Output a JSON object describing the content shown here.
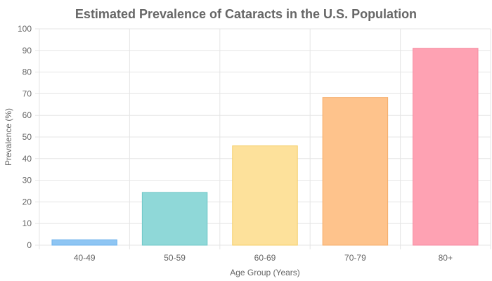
{
  "chart_data": {
    "type": "bar",
    "title": "Estimated Prevalence of Cataracts in the U.S. Population",
    "xlabel": "Age Group (Years)",
    "ylabel": "Prevalence (%)",
    "categories": [
      "40-49",
      "50-59",
      "60-69",
      "70-79",
      "80+"
    ],
    "values": [
      2.5,
      24.4,
      45.9,
      68.3,
      91.0
    ],
    "ylim": [
      0,
      100
    ],
    "yticks": [
      "0",
      "10",
      "20",
      "30",
      "40",
      "50",
      "60",
      "70",
      "80",
      "90",
      "100"
    ],
    "grid": true,
    "legend": "none",
    "colors": {
      "fills": [
        "#8ec5f3",
        "#8fd8d8",
        "#fde19b",
        "#fec38c",
        "#fea2b3"
      ],
      "strokes": [
        "#6fb3ec",
        "#6fc7c7",
        "#f5cf6a",
        "#f5ad6a",
        "#f58ba0"
      ],
      "grid": "#e5e5e5",
      "text": "#666666"
    }
  }
}
